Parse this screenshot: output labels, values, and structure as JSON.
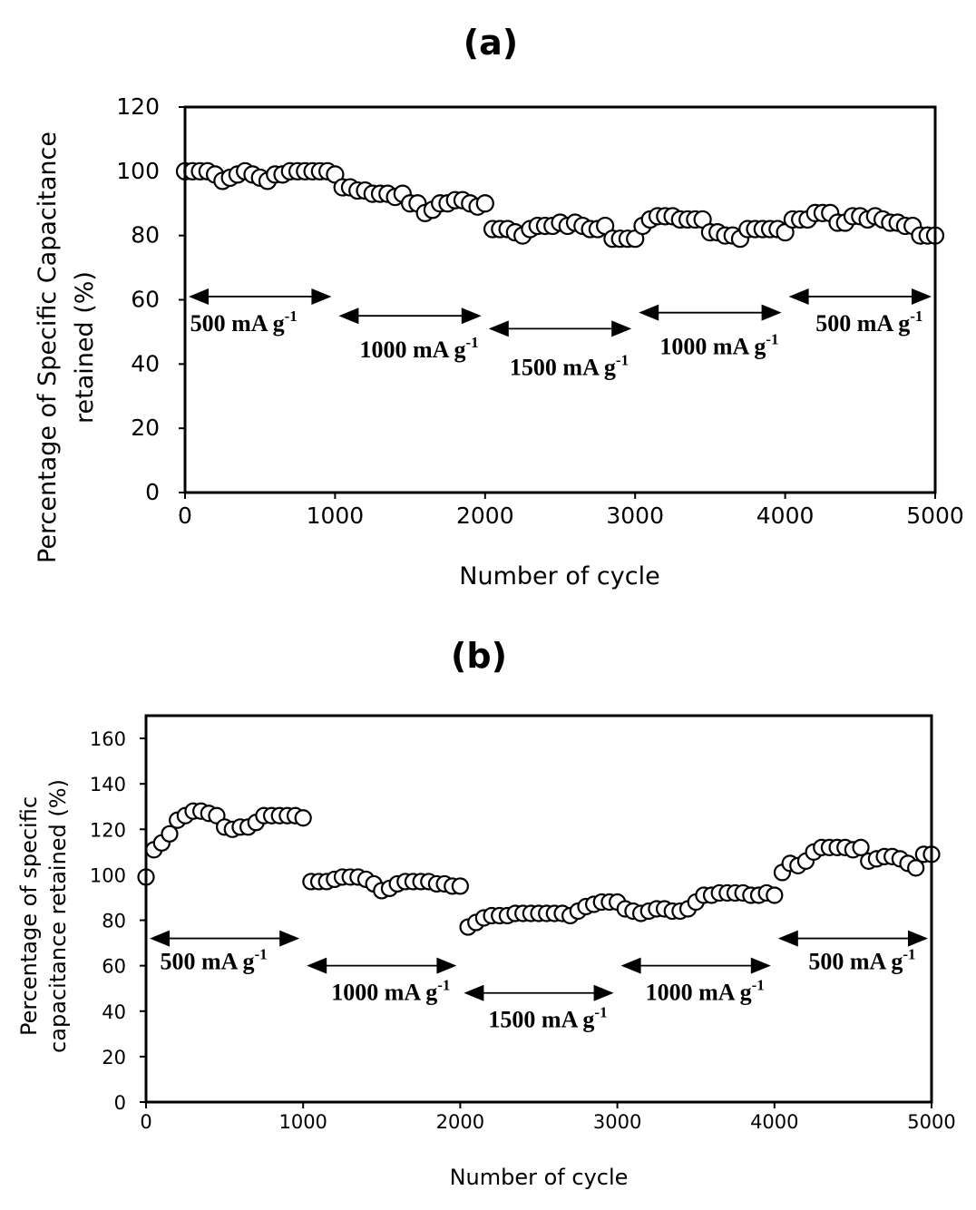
{
  "chart_data": [
    {
      "type": "scatter",
      "panel_label": "(a)",
      "xlabel": "Number of cycle",
      "ylabel_lines": [
        "Percentage of Specific Capacitance",
        "retained (%)"
      ],
      "xlim": [
        0,
        5000
      ],
      "ylim": [
        0,
        120
      ],
      "xticks": [
        0,
        1000,
        2000,
        3000,
        4000,
        5000
      ],
      "yticks": [
        0,
        20,
        40,
        60,
        80,
        100,
        120
      ],
      "marker": "open-circle",
      "x": [
        0,
        50,
        100,
        150,
        200,
        250,
        300,
        350,
        400,
        450,
        500,
        550,
        600,
        650,
        700,
        750,
        800,
        850,
        900,
        950,
        1000,
        1050,
        1100,
        1150,
        1200,
        1250,
        1300,
        1350,
        1400,
        1450,
        1500,
        1550,
        1600,
        1650,
        1700,
        1750,
        1800,
        1850,
        1900,
        1950,
        2000,
        2050,
        2100,
        2150,
        2200,
        2250,
        2300,
        2350,
        2400,
        2450,
        2500,
        2550,
        2600,
        2650,
        2700,
        2750,
        2800,
        2850,
        2900,
        2950,
        3000,
        3050,
        3100,
        3150,
        3200,
        3250,
        3300,
        3350,
        3400,
        3450,
        3500,
        3550,
        3600,
        3650,
        3700,
        3750,
        3800,
        3850,
        3900,
        3950,
        4000,
        4050,
        4100,
        4150,
        4200,
        4250,
        4300,
        4350,
        4400,
        4450,
        4500,
        4550,
        4600,
        4650,
        4700,
        4750,
        4800,
        4850,
        4900,
        4950,
        5000
      ],
      "y": [
        100,
        100,
        100,
        100,
        99,
        97,
        98,
        99,
        100,
        99,
        98,
        97,
        99,
        99,
        100,
        100,
        100,
        100,
        100,
        100,
        99,
        95,
        95,
        94,
        94,
        93,
        93,
        93,
        92,
        93,
        90,
        90,
        87,
        88,
        90,
        90,
        91,
        91,
        90,
        89,
        90,
        82,
        82,
        82,
        81,
        80,
        82,
        83,
        83,
        83,
        84,
        83,
        84,
        83,
        82,
        82,
        83,
        79,
        79,
        79,
        79,
        83,
        85,
        86,
        86,
        86,
        85,
        85,
        85,
        85,
        81,
        81,
        80,
        80,
        79,
        82,
        82,
        82,
        82,
        82,
        81,
        85,
        85,
        85,
        87,
        87,
        87,
        84,
        84,
        86,
        86,
        85,
        86,
        85,
        84,
        84,
        83,
        83,
        80,
        80,
        80
      ],
      "annotations": [
        {
          "label": "500 mA g",
          "sup": "-1",
          "from": 0,
          "to": 1000,
          "y_arrow": 61
        },
        {
          "label": "1000 mA g",
          "sup": "-1",
          "from": 1000,
          "to": 2000,
          "y_arrow": 55
        },
        {
          "label": "1500 mA g",
          "sup": "-1",
          "from": 2000,
          "to": 3000,
          "y_arrow": 51
        },
        {
          "label": "1000 mA g",
          "sup": "-1",
          "from": 3000,
          "to": 4000,
          "y_arrow": 56
        },
        {
          "label": "500 mA g",
          "sup": "-1",
          "from": 4000,
          "to": 5000,
          "y_arrow": 61
        }
      ]
    },
    {
      "type": "scatter",
      "panel_label": "(b)",
      "xlabel": "Number of cycle",
      "ylabel_lines": [
        "Percentage of specific",
        "capacitance retained (%)"
      ],
      "xlim": [
        0,
        5000
      ],
      "ylim": [
        0,
        170
      ],
      "xticks": [
        0,
        1000,
        2000,
        3000,
        4000,
        5000
      ],
      "yticks": [
        0,
        20,
        40,
        60,
        80,
        100,
        120,
        140,
        160
      ],
      "marker": "open-circle",
      "x": [
        0,
        50,
        100,
        150,
        200,
        250,
        300,
        350,
        400,
        450,
        500,
        550,
        600,
        650,
        700,
        750,
        800,
        850,
        900,
        950,
        1000,
        1050,
        1100,
        1150,
        1200,
        1250,
        1300,
        1350,
        1400,
        1450,
        1500,
        1550,
        1600,
        1650,
        1700,
        1750,
        1800,
        1850,
        1900,
        1950,
        2000,
        2050,
        2100,
        2150,
        2200,
        2250,
        2300,
        2350,
        2400,
        2450,
        2500,
        2550,
        2600,
        2650,
        2700,
        2750,
        2800,
        2850,
        2900,
        2950,
        3000,
        3050,
        3100,
        3150,
        3200,
        3250,
        3300,
        3350,
        3400,
        3450,
        3500,
        3550,
        3600,
        3650,
        3700,
        3750,
        3800,
        3850,
        3900,
        3950,
        4000,
        4050,
        4100,
        4150,
        4200,
        4250,
        4300,
        4350,
        4400,
        4450,
        4500,
        4550,
        4600,
        4650,
        4700,
        4750,
        4800,
        4850,
        4900,
        4950,
        5000
      ],
      "y": [
        99,
        111,
        114,
        118,
        124,
        126,
        128,
        128,
        127,
        126,
        121,
        120,
        121,
        121,
        123,
        126,
        126,
        126,
        126,
        126,
        125,
        97,
        97,
        97,
        98,
        99,
        99,
        99,
        98,
        96,
        93,
        94,
        96,
        97,
        97,
        97,
        97,
        96,
        96,
        95,
        95,
        77,
        79,
        81,
        82,
        82,
        82,
        83,
        83,
        83,
        83,
        83,
        83,
        83,
        82,
        84,
        86,
        87,
        88,
        88,
        88,
        85,
        84,
        83,
        84,
        85,
        85,
        84,
        84,
        85,
        88,
        91,
        91,
        92,
        92,
        92,
        92,
        91,
        91,
        92,
        91,
        101,
        105,
        104,
        106,
        110,
        112,
        112,
        112,
        112,
        111,
        112,
        106,
        107,
        108,
        108,
        107,
        105,
        103,
        109,
        109
      ],
      "annotations": [
        {
          "label": "500 mA g",
          "sup": "-1",
          "from": 0,
          "to": 1000,
          "y_arrow": 72
        },
        {
          "label": "1000 mA g",
          "sup": "-1",
          "from": 1000,
          "to": 2000,
          "y_arrow": 60
        },
        {
          "label": "1500 mA g",
          "sup": "-1",
          "from": 2000,
          "to": 3000,
          "y_arrow": 48
        },
        {
          "label": "1000 mA g",
          "sup": "-1",
          "from": 3000,
          "to": 4000,
          "y_arrow": 60
        },
        {
          "label": "500 mA g",
          "sup": "-1",
          "from": 4000,
          "to": 5000,
          "y_arrow": 72
        }
      ]
    }
  ]
}
